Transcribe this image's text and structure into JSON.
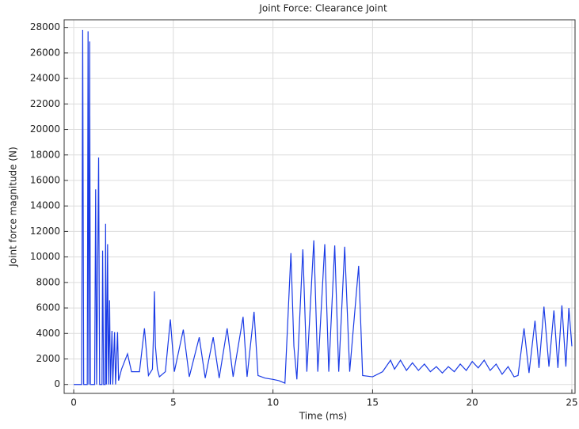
{
  "chart_data": {
    "type": "line",
    "title": "Joint Force: Clearance Joint",
    "x_label": "Time (ms)",
    "y_label": "Joint force magnitude (N)",
    "color": "#1a3be6",
    "grid": true,
    "xlim": [
      -0.48,
      25.16
    ],
    "ylim": [
      -700,
      28600
    ],
    "xticks": [
      0,
      5,
      10,
      15,
      20,
      25
    ],
    "yticks": [
      0,
      2000,
      4000,
      6000,
      8000,
      10000,
      12000,
      14000,
      16000,
      18000,
      20000,
      22000,
      24000,
      26000,
      28000
    ],
    "x": [
      0,
      0.4,
      0.45,
      0.5,
      0.68,
      0.72,
      0.76,
      0.8,
      0.84,
      1.05,
      1.1,
      1.15,
      1.25,
      1.3,
      1.42,
      1.45,
      1.5,
      1.58,
      1.6,
      1.64,
      1.7,
      1.74,
      1.8,
      1.84,
      1.92,
      1.96,
      2.05,
      2.1,
      2.2,
      2.25,
      2.4,
      2.7,
      2.9,
      3.3,
      3.55,
      3.75,
      3.95,
      4.02,
      4.05,
      4.1,
      4.2,
      4.3,
      4.6,
      4.85,
      5.05,
      5.5,
      5.8,
      6.3,
      6.6,
      7.0,
      7.3,
      7.7,
      8.0,
      8.5,
      8.7,
      9.05,
      9.25,
      9.6,
      10.0,
      10.3,
      10.6,
      10.9,
      11.05,
      11.2,
      11.5,
      11.7,
      12.05,
      12.25,
      12.6,
      12.8,
      13.1,
      13.3,
      13.6,
      13.85,
      14.3,
      14.5,
      15.0,
      15.5,
      15.9,
      16.1,
      16.4,
      16.7,
      17.0,
      17.3,
      17.6,
      17.9,
      18.2,
      18.5,
      18.8,
      19.1,
      19.4,
      19.7,
      20.0,
      20.3,
      20.6,
      20.9,
      21.2,
      21.5,
      21.8,
      22.1,
      22.3,
      22.6,
      22.85,
      23.15,
      23.35,
      23.6,
      23.85,
      24.1,
      24.3,
      24.5,
      24.7,
      24.85,
      25.0
    ],
    "values": [
      0,
      0,
      27800,
      0,
      0,
      27700,
      0,
      26900,
      0,
      0,
      15300,
      0,
      17800,
      0,
      0,
      10500,
      0,
      0,
      12600,
      0,
      11000,
      0,
      6600,
      0,
      4200,
      0,
      4100,
      0,
      4100,
      300,
      1200,
      2400,
      1000,
      1000,
      4400,
      700,
      1200,
      4800,
      7300,
      3000,
      1200,
      600,
      1000,
      5100,
      1000,
      4300,
      600,
      3700,
      500,
      3700,
      500,
      4400,
      600,
      5300,
      600,
      5700,
      700,
      500,
      400,
      300,
      100,
      10300,
      3000,
      400,
      10600,
      1000,
      11300,
      1000,
      11000,
      1000,
      10900,
      1000,
      10800,
      1000,
      9300,
      700,
      600,
      1000,
      1900,
      1200,
      1900,
      1100,
      1700,
      1100,
      1600,
      1000,
      1400,
      900,
      1400,
      1000,
      1600,
      1100,
      1800,
      1300,
      1900,
      1100,
      1600,
      800,
      1400,
      600,
      700,
      4400,
      900,
      5000,
      1300,
      6100,
      1400,
      5800,
      1300,
      6200,
      1400,
      6000,
      3000
    ]
  }
}
